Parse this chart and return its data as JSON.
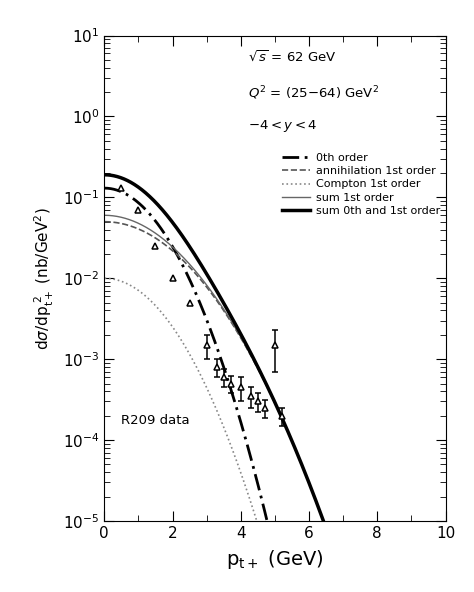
{
  "title": "",
  "xlabel": "p$_{t+}$ (GeV)",
  "xlim": [
    0,
    10
  ],
  "ylim": [
    1e-05,
    10
  ],
  "legend_entries": [
    "0th order",
    "annihilation 1st order",
    "Compton 1st order",
    "sum 1st order",
    "sum 0th and 1st order"
  ],
  "data_x": [
    0.5,
    1.0,
    1.5,
    2.0,
    2.5,
    3.0,
    3.3,
    3.5,
    3.7,
    4.0,
    4.3,
    4.5,
    4.7,
    5.0,
    5.2
  ],
  "data_y": [
    0.13,
    0.07,
    0.025,
    0.01,
    0.005,
    0.0015,
    0.0008,
    0.0006,
    0.0005,
    0.00045,
    0.00035,
    0.0003,
    0.00025,
    0.0015,
    0.0002
  ],
  "data_yerr_lo": [
    0,
    0,
    0,
    0,
    0,
    0.0005,
    0.0002,
    0.00015,
    0.00012,
    0.00015,
    0.0001,
    8e-05,
    6e-05,
    0.0008,
    5e-05
  ],
  "data_yerr_hi": [
    0,
    0,
    0,
    0,
    0,
    0.0005,
    0.0002,
    0.00015,
    0.00012,
    0.00015,
    0.0001,
    8e-05,
    6e-05,
    0.0008,
    5e-05
  ],
  "background_color": "#ffffff"
}
